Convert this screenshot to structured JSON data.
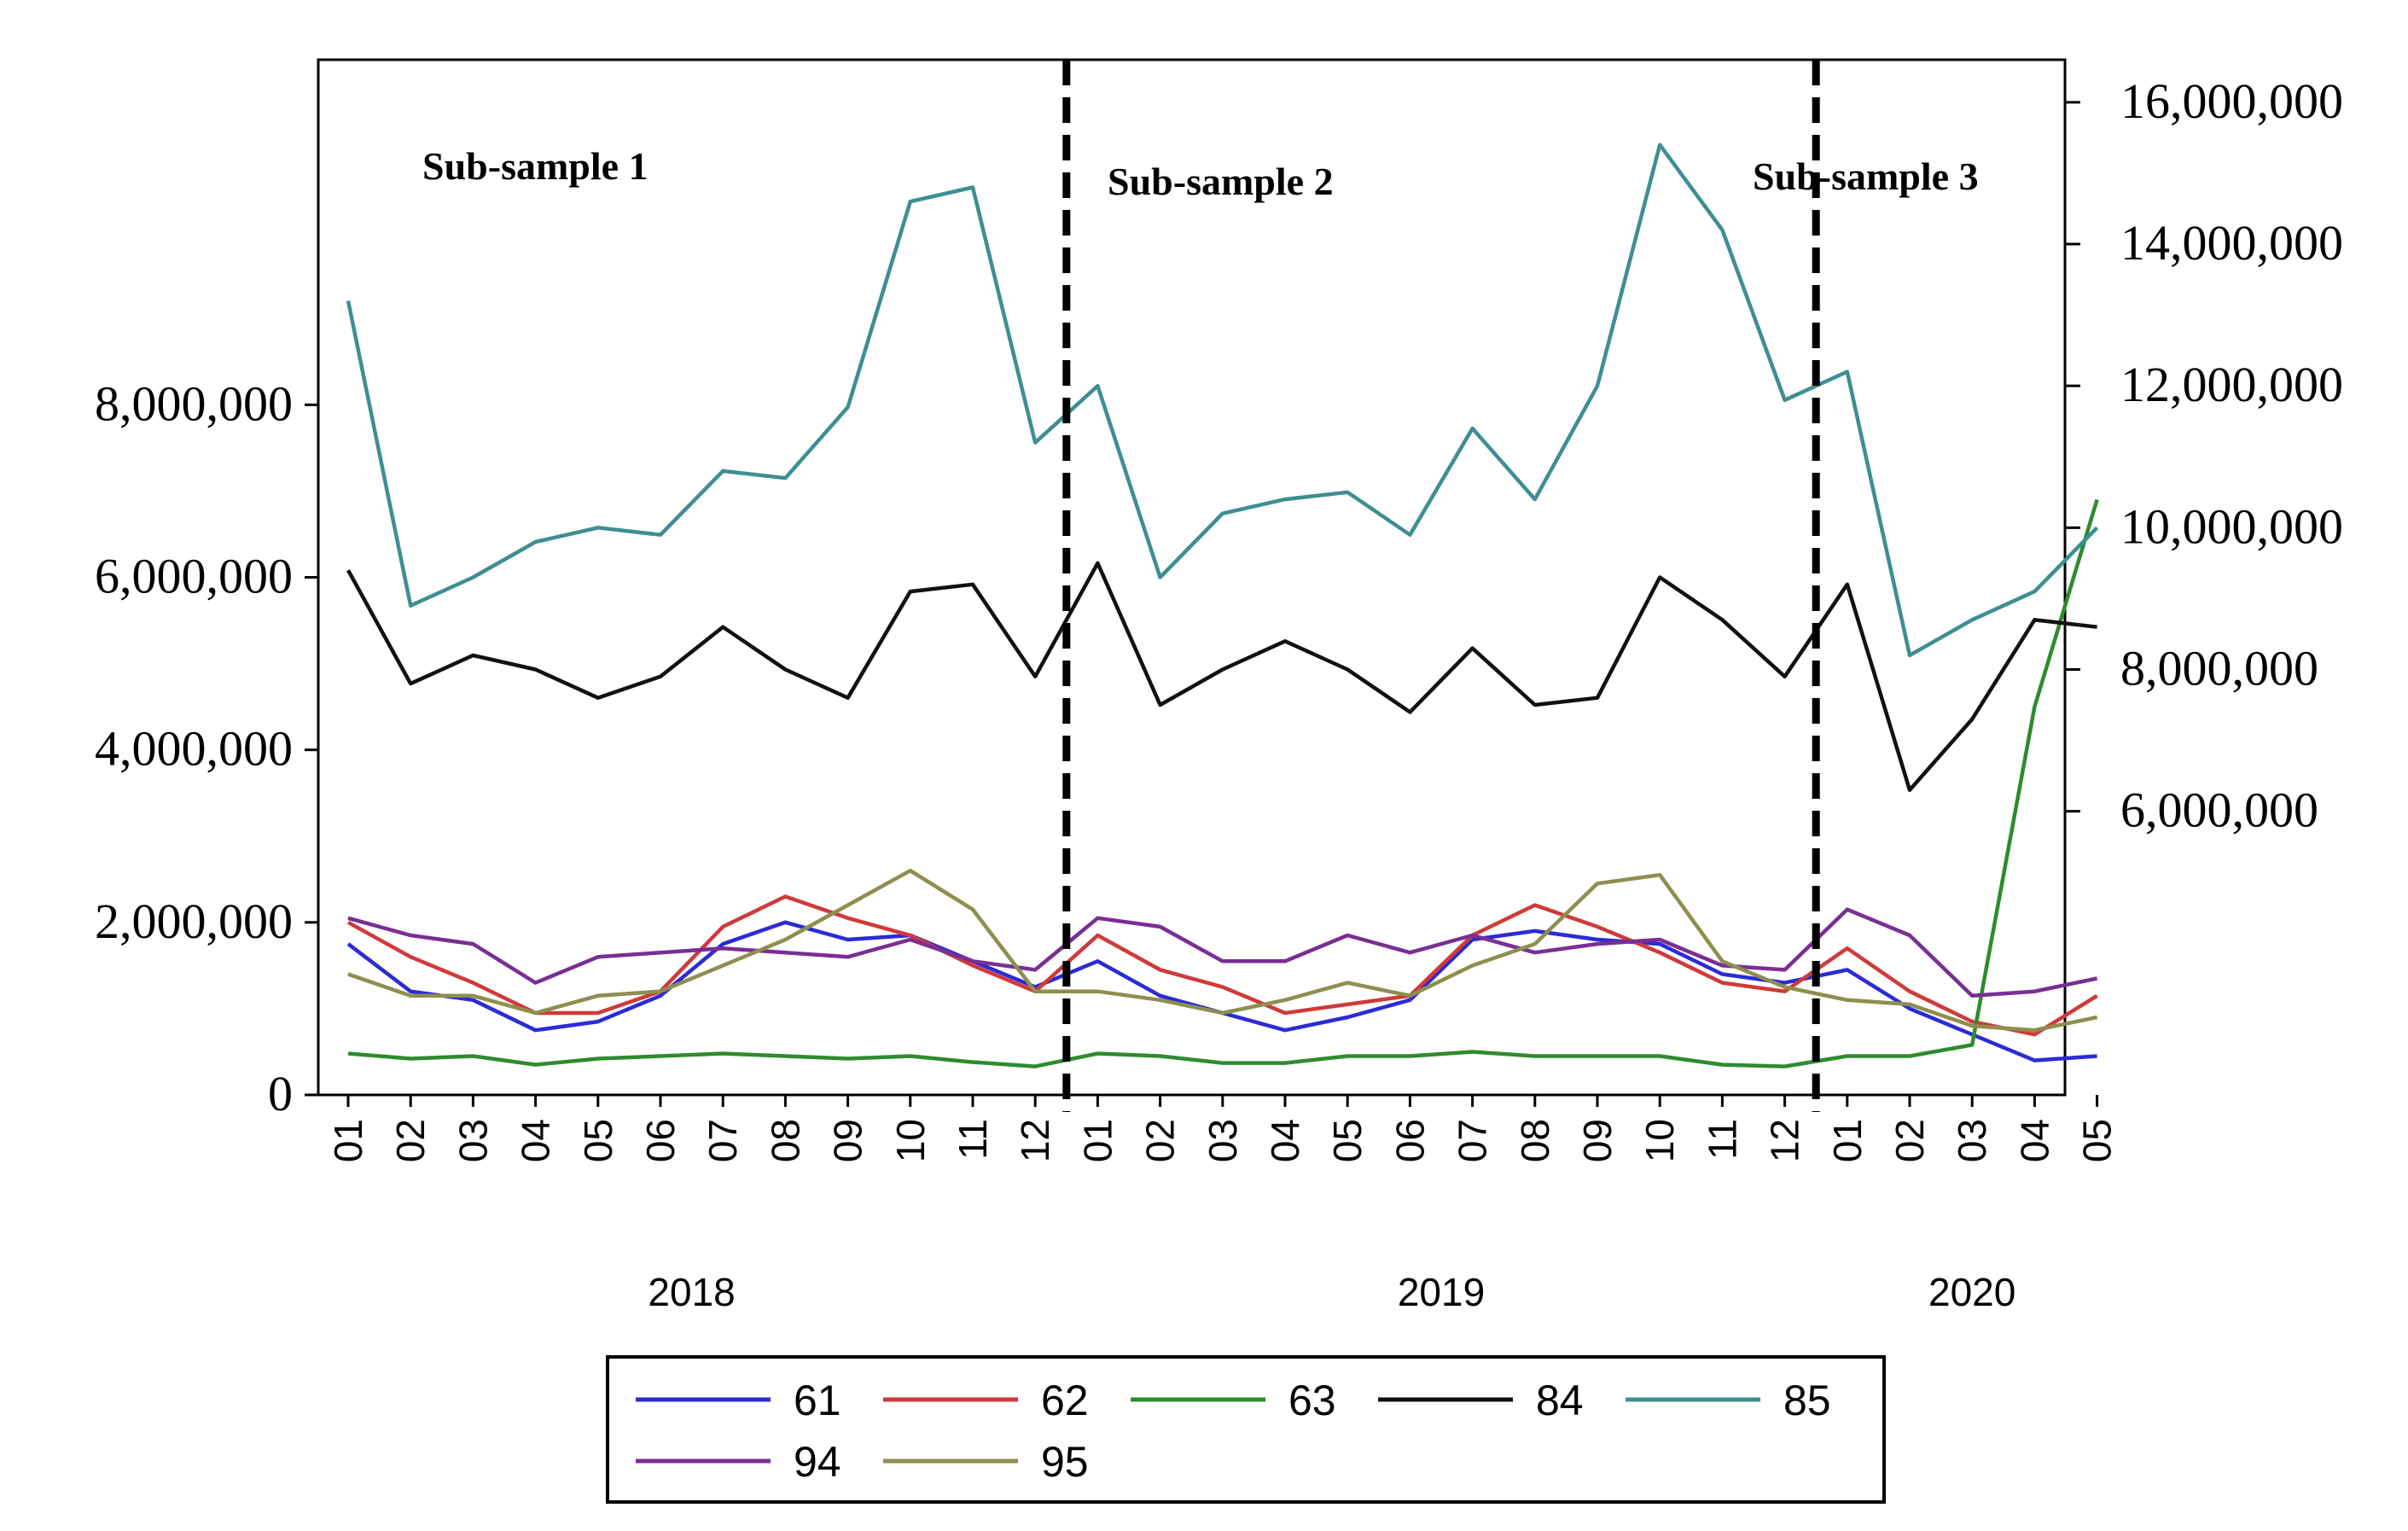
{
  "chart_data": {
    "type": "line",
    "x": [
      "01",
      "02",
      "03",
      "04",
      "05",
      "06",
      "07",
      "08",
      "09",
      "10",
      "11",
      "12",
      "01",
      "02",
      "03",
      "04",
      "05",
      "06",
      "07",
      "08",
      "09",
      "10",
      "11",
      "12",
      "01",
      "02",
      "03",
      "04",
      "05"
    ],
    "years": [
      {
        "label": "2018",
        "start": 0,
        "end": 11
      },
      {
        "label": "2019",
        "start": 12,
        "end": 23
      },
      {
        "label": "2020",
        "start": 24,
        "end": 28
      }
    ],
    "sub_samples": [
      {
        "label": "Sub-sample 1",
        "start": 0
      },
      {
        "label": "Sub-sample 2",
        "start": 12
      },
      {
        "label": "Sub-sample 3",
        "start": 24
      }
    ],
    "dividers_after_index": [
      11.5,
      23.5
    ],
    "left_axis": {
      "ylim": [
        0,
        12000000
      ],
      "ticks": [
        0,
        2000000,
        4000000,
        6000000,
        8000000
      ],
      "tick_labels": [
        "0",
        "2,000,000",
        "4,000,000",
        "6,000,000",
        "8,000,000"
      ]
    },
    "right_axis": {
      "ylim": [
        2000000,
        16600000
      ],
      "ticks": [
        6000000,
        8000000,
        10000000,
        12000000,
        14000000,
        16000000
      ],
      "tick_labels": [
        "6,000,000",
        "8,000,000",
        "10,000,000",
        "12,000,000",
        "14,000,000",
        "16,000,000"
      ]
    },
    "series": [
      {
        "name": "61",
        "color": "#2b2bd6",
        "axis": "left",
        "values": [
          1750000,
          1200000,
          1100000,
          750000,
          850000,
          1150000,
          1750000,
          2000000,
          1800000,
          1850000,
          1550000,
          1250000,
          1550000,
          1150000,
          950000,
          750000,
          900000,
          1100000,
          1800000,
          1900000,
          1800000,
          1750000,
          1400000,
          1300000,
          1450000,
          1000000,
          700000,
          400000,
          450000
        ]
      },
      {
        "name": "62",
        "color": "#d03a3a",
        "axis": "left",
        "values": [
          2000000,
          1600000,
          1300000,
          950000,
          950000,
          1200000,
          1950000,
          2300000,
          2050000,
          1850000,
          1500000,
          1200000,
          1850000,
          1450000,
          1250000,
          950000,
          1050000,
          1150000,
          1850000,
          2200000,
          1950000,
          1650000,
          1300000,
          1200000,
          1700000,
          1200000,
          850000,
          700000,
          1150000
        ]
      },
      {
        "name": "63",
        "color": "#2e8b2e",
        "axis": "left",
        "values": [
          480000,
          420000,
          450000,
          350000,
          420000,
          450000,
          480000,
          450000,
          420000,
          450000,
          380000,
          330000,
          480000,
          450000,
          370000,
          370000,
          450000,
          450000,
          500000,
          450000,
          450000,
          450000,
          350000,
          330000,
          450000,
          450000,
          580000,
          4500000,
          6900000
        ]
      },
      {
        "name": "84",
        "color": "#111111",
        "axis": "right",
        "values": [
          9400000,
          7800000,
          8200000,
          8000000,
          7600000,
          7900000,
          8600000,
          8000000,
          7600000,
          9100000,
          9200000,
          7900000,
          9500000,
          7500000,
          8000000,
          8400000,
          8000000,
          7400000,
          8300000,
          7500000,
          7600000,
          9300000,
          8700000,
          7900000,
          9200000,
          6300000,
          7300000,
          8700000,
          8600000
        ]
      },
      {
        "name": "85",
        "color": "#3e8e92",
        "axis": "right",
        "values": [
          13200000,
          8900000,
          9300000,
          9800000,
          10000000,
          9900000,
          10800000,
          10700000,
          11700000,
          14600000,
          14800000,
          11200000,
          12000000,
          9300000,
          10200000,
          10400000,
          10500000,
          9900000,
          11400000,
          10400000,
          12000000,
          15400000,
          14200000,
          11800000,
          12200000,
          8200000,
          8700000,
          9100000,
          10000000
        ]
      },
      {
        "name": "94",
        "color": "#7a2e94",
        "axis": "left",
        "values": [
          2050000,
          1850000,
          1750000,
          1300000,
          1600000,
          1650000,
          1700000,
          1650000,
          1600000,
          1800000,
          1550000,
          1450000,
          2050000,
          1950000,
          1550000,
          1550000,
          1850000,
          1650000,
          1850000,
          1650000,
          1750000,
          1800000,
          1500000,
          1450000,
          2150000,
          1850000,
          1150000,
          1200000,
          1350000
        ]
      },
      {
        "name": "95",
        "color": "#8e8e4e",
        "axis": "left",
        "values": [
          1400000,
          1150000,
          1150000,
          950000,
          1150000,
          1200000,
          1500000,
          1800000,
          2200000,
          2600000,
          2150000,
          1200000,
          1200000,
          1100000,
          950000,
          1100000,
          1300000,
          1150000,
          1500000,
          1750000,
          2450000,
          2550000,
          1550000,
          1250000,
          1100000,
          1050000,
          800000,
          750000,
          900000
        ]
      }
    ]
  }
}
